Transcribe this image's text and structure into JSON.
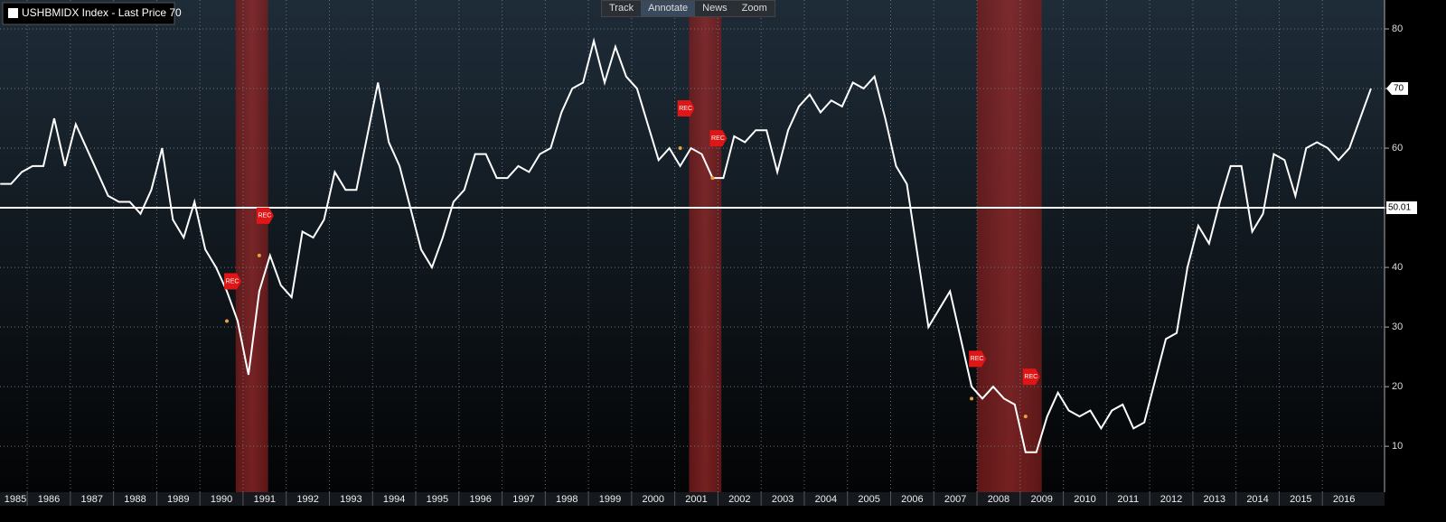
{
  "toolbar": [
    "Track",
    "Annotate",
    "News",
    "Zoom"
  ],
  "chart_data": {
    "type": "line",
    "series": [
      {
        "name": "USHBMIDX Index - Last Price 70",
        "color": "#ffffff",
        "values": [
          54,
          54,
          56,
          57,
          57,
          65,
          57,
          64,
          60,
          56,
          52,
          51,
          51,
          49,
          53,
          60,
          48,
          45,
          51,
          43,
          40,
          36,
          31,
          22,
          36,
          42,
          37,
          35,
          46,
          45,
          48,
          56,
          53,
          53,
          62,
          71,
          61,
          57,
          50,
          43,
          40,
          45,
          51,
          53,
          59,
          59,
          55,
          55,
          57,
          56,
          59,
          60,
          66,
          70,
          71,
          78,
          71,
          77,
          72,
          70,
          64,
          58,
          60,
          57,
          60,
          59,
          55,
          55,
          62,
          61,
          63,
          63,
          56,
          63,
          67,
          69,
          66,
          68,
          67,
          71,
          70,
          72,
          65,
          57,
          54,
          42,
          30,
          33,
          36,
          28,
          20,
          18,
          20,
          18,
          17,
          9,
          9,
          15,
          19,
          16,
          15,
          16,
          13,
          16,
          17,
          13,
          14,
          21,
          28,
          29,
          40,
          47,
          44,
          51,
          57,
          57,
          46,
          49,
          59,
          58,
          52,
          60,
          61,
          60,
          58,
          60,
          65,
          70
        ]
      }
    ],
    "x": [
      1985.375,
      1985.625,
      1985.875,
      1986.125,
      1986.375,
      1986.625,
      1986.875,
      1987.125,
      1987.375,
      1987.625,
      1987.875,
      1988.125,
      1988.375,
      1988.625,
      1988.875,
      1989.125,
      1989.375,
      1989.625,
      1989.875,
      1990.125,
      1990.375,
      1990.625,
      1990.875,
      1991.125,
      1991.375,
      1991.625,
      1991.875,
      1992.125,
      1992.375,
      1992.625,
      1992.875,
      1993.125,
      1993.375,
      1993.625,
      1993.875,
      1994.125,
      1994.375,
      1994.625,
      1994.875,
      1995.125,
      1995.375,
      1995.625,
      1995.875,
      1996.125,
      1996.375,
      1996.625,
      1996.875,
      1997.125,
      1997.375,
      1997.625,
      1997.875,
      1998.125,
      1998.375,
      1998.625,
      1998.875,
      1999.125,
      1999.375,
      1999.625,
      1999.875,
      2000.125,
      2000.375,
      2000.625,
      2000.875,
      2001.125,
      2001.375,
      2001.625,
      2001.875,
      2002.125,
      2002.375,
      2002.625,
      2002.875,
      2003.125,
      2003.375,
      2003.625,
      2003.875,
      2004.125,
      2004.375,
      2004.625,
      2004.875,
      2005.125,
      2005.375,
      2005.625,
      2005.875,
      2006.125,
      2006.375,
      2006.625,
      2006.875,
      2007.125,
      2007.375,
      2007.625,
      2007.875,
      2008.125,
      2008.375,
      2008.625,
      2008.875,
      2009.125,
      2009.375,
      2009.625,
      2009.875,
      2010.125,
      2010.375,
      2010.625,
      2010.875,
      2011.125,
      2011.375,
      2011.625,
      2011.875,
      2012.125,
      2012.375,
      2012.625,
      2012.875,
      2013.125,
      2013.375,
      2013.625,
      2013.875,
      2014.125,
      2014.375,
      2014.625,
      2014.875,
      2015.125,
      2015.375,
      2015.625,
      2015.875,
      2016.125,
      2016.375,
      2016.625,
      2016.875,
      2017.125
    ],
    "xlim": [
      1985.37,
      2017.44
    ],
    "xticks": [
      {
        "value": 1985,
        "label": "1985"
      },
      {
        "value": 1986,
        "label": "1986"
      },
      {
        "value": 1987,
        "label": "1987"
      },
      {
        "value": 1988,
        "label": "1988"
      },
      {
        "value": 1989,
        "label": "1989"
      },
      {
        "value": 1990,
        "label": "1990"
      },
      {
        "value": 1991,
        "label": "1991"
      },
      {
        "value": 1992,
        "label": "1992"
      },
      {
        "value": 1993,
        "label": "1993"
      },
      {
        "value": 1994,
        "label": "1994"
      },
      {
        "value": 1995,
        "label": "1995"
      },
      {
        "value": 1996,
        "label": "1996"
      },
      {
        "value": 1997,
        "label": "1997"
      },
      {
        "value": 1998,
        "label": "1998"
      },
      {
        "value": 1999,
        "label": "1999"
      },
      {
        "value": 2000,
        "label": "2000"
      },
      {
        "value": 2001,
        "label": "2001"
      },
      {
        "value": 2002,
        "label": "2002"
      },
      {
        "value": 2003,
        "label": "2003"
      },
      {
        "value": 2004,
        "label": "2004"
      },
      {
        "value": 2005,
        "label": "2005"
      },
      {
        "value": 2006,
        "label": "2006"
      },
      {
        "value": 2007,
        "label": "2007"
      },
      {
        "value": 2008,
        "label": "2008"
      },
      {
        "value": 2009,
        "label": "2009"
      },
      {
        "value": 2010,
        "label": "2010"
      },
      {
        "value": 2011,
        "label": "2011"
      },
      {
        "value": 2012,
        "label": "2012"
      },
      {
        "value": 2013,
        "label": "2013"
      },
      {
        "value": 2014,
        "label": "2014"
      },
      {
        "value": 2015,
        "label": "2015"
      },
      {
        "value": 2016,
        "label": "2016"
      }
    ],
    "ylim": [
      2.3,
      84.85
    ],
    "yticks": [
      10,
      20,
      30,
      40,
      50,
      60,
      70,
      80
    ],
    "grid": true,
    "reference_line": 50.01,
    "recessions": [
      [
        1990.83,
        1991.58
      ],
      [
        2001.33,
        2002.08
      ],
      [
        2008.0,
        2009.5
      ]
    ],
    "rec_markers": [
      {
        "label": "REC",
        "x": 1990.625,
        "y": 31
      },
      {
        "label": "REC",
        "x": 1991.375,
        "y": 42
      },
      {
        "label": "REC",
        "x": 2001.125,
        "y": 60
      },
      {
        "label": "REC",
        "x": 2001.875,
        "y": 55
      },
      {
        "label": "REC",
        "x": 2007.875,
        "y": 18
      },
      {
        "label": "REC",
        "x": 2009.125,
        "y": 15
      }
    ]
  }
}
